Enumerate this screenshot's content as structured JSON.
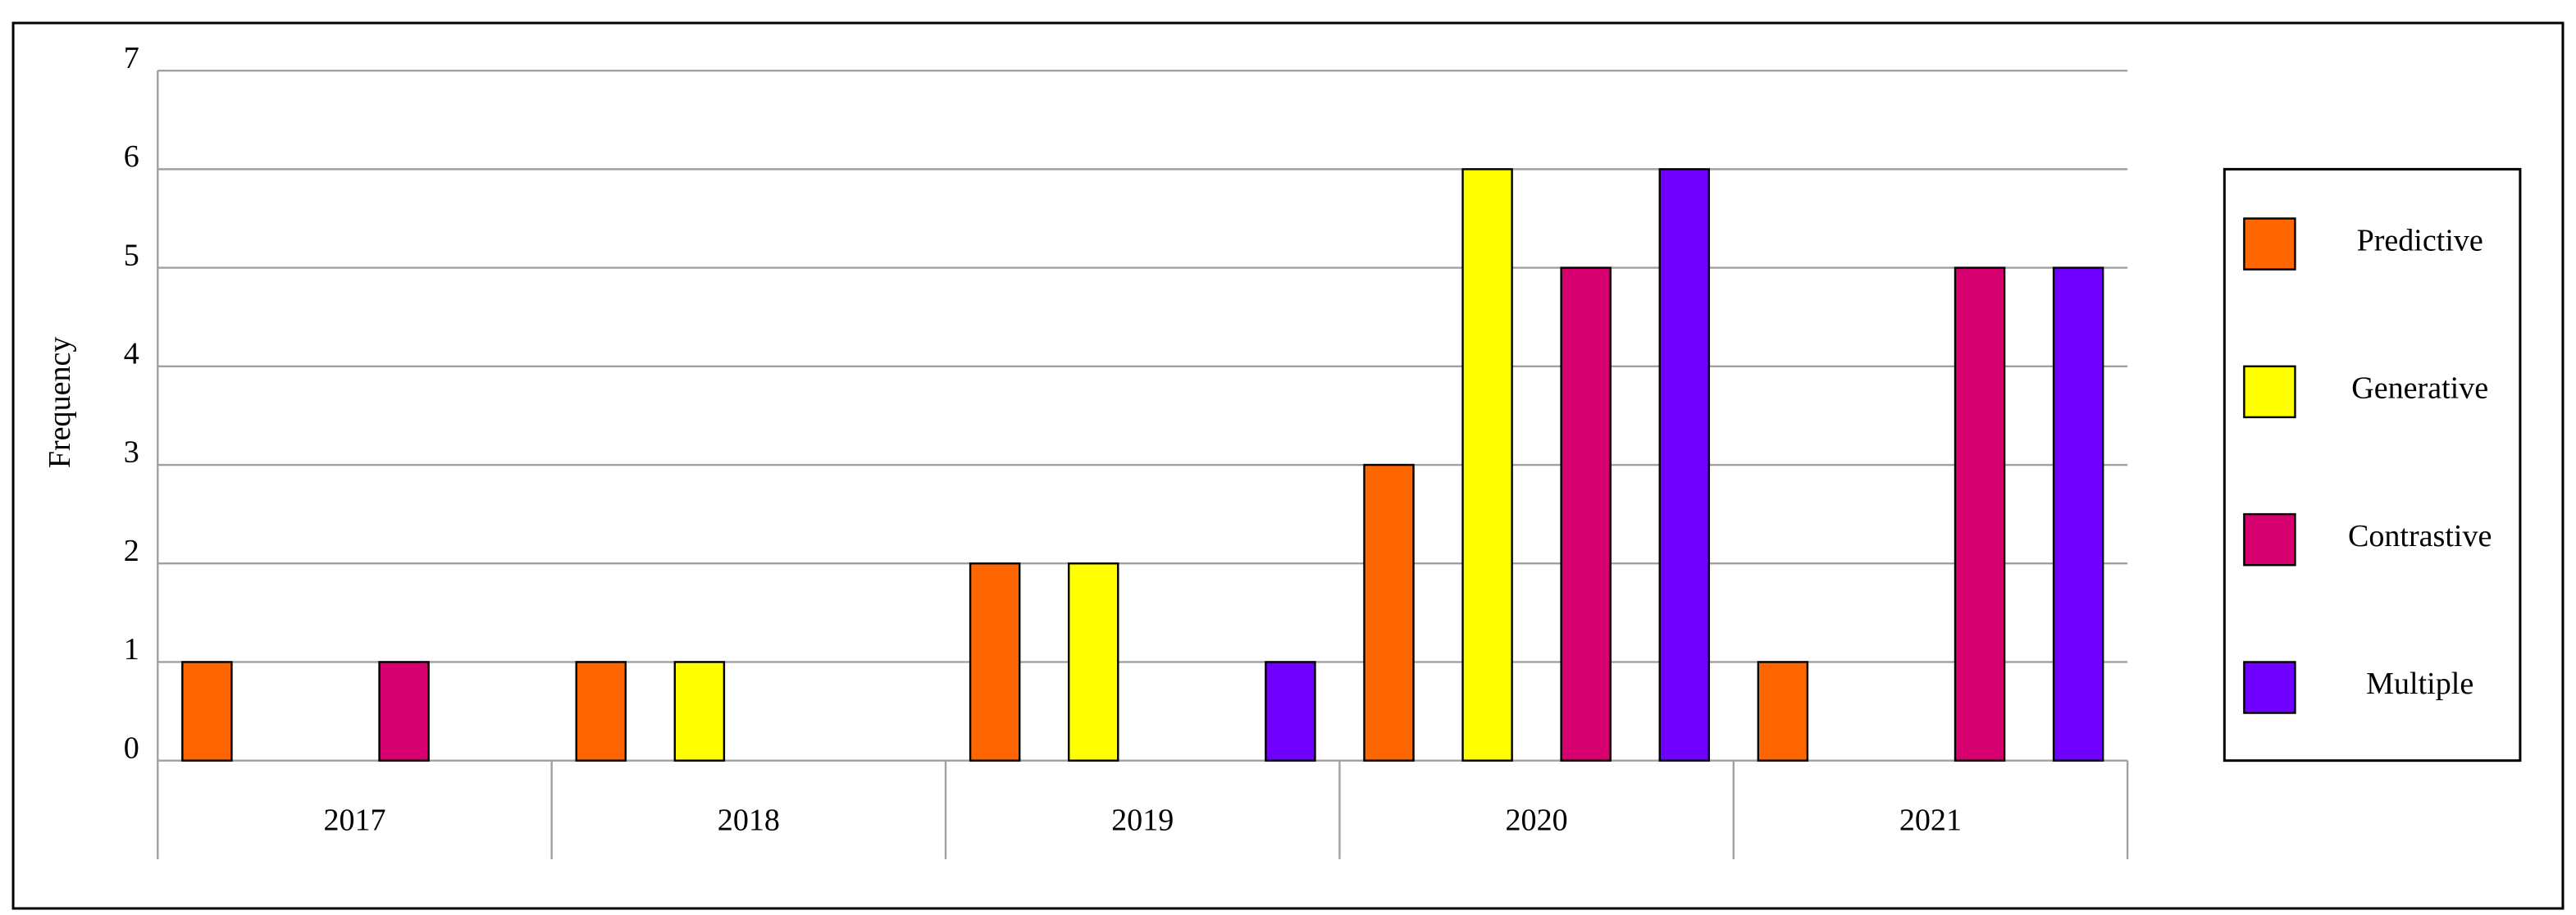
{
  "chart_data": {
    "type": "bar",
    "y_label": "Frequency",
    "categories": [
      "2017",
      "2018",
      "2019",
      "2020",
      "2021"
    ],
    "series": [
      {
        "name": "Predictive",
        "color": "#ff6600",
        "values": [
          1,
          1,
          2,
          3,
          1
        ]
      },
      {
        "name": "Generative",
        "color": "#ffff00",
        "values": [
          0,
          1,
          2,
          6,
          0
        ]
      },
      {
        "name": "Contrastive",
        "color": "#d6006f",
        "values": [
          1,
          0,
          0,
          5,
          5
        ]
      },
      {
        "name": "Multiple",
        "color": "#7000ff",
        "values": [
          0,
          0,
          1,
          6,
          5
        ]
      }
    ],
    "ylim": [
      0,
      7
    ],
    "yticks": [
      0,
      1,
      2,
      3,
      4,
      5,
      6,
      7
    ],
    "grid": true,
    "legend": "right"
  }
}
